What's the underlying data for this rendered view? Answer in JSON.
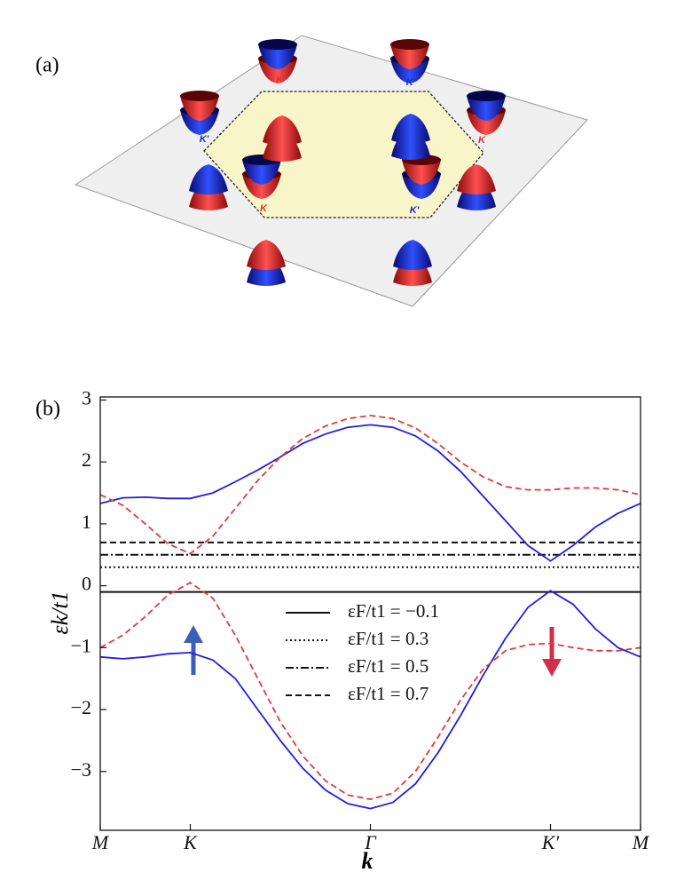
{
  "panel_a": {
    "label": "(a)",
    "valley_labels": [
      "K",
      "K'",
      "K",
      "K'",
      "K",
      "K'"
    ]
  },
  "chart_data": {
    "type": "line",
    "panel_label": "(b)",
    "x_label": "k",
    "y_label": "εk/t1",
    "xlim": [
      0,
      3
    ],
    "ylim": [
      -3.95,
      3.05
    ],
    "xticks": [
      {
        "value": 0,
        "label": "M"
      },
      {
        "value": 0.5,
        "label": "K"
      },
      {
        "value": 1.5,
        "label": "Γ"
      },
      {
        "value": 2.5,
        "label": "K′"
      },
      {
        "value": 3,
        "label": "M"
      }
    ],
    "yticks": [
      {
        "value": -3,
        "label": "−3"
      },
      {
        "value": -2,
        "label": "−2"
      },
      {
        "value": -1,
        "label": "−1"
      },
      0,
      1,
      2,
      3
    ],
    "x": [
      0,
      0.125,
      0.25,
      0.375,
      0.5,
      0.625,
      0.75,
      0.875,
      1.0,
      1.125,
      1.25,
      1.375,
      1.5,
      1.625,
      1.75,
      1.875,
      2.0,
      2.125,
      2.25,
      2.375,
      2.5,
      2.625,
      2.75,
      2.875,
      3.0
    ],
    "series": [
      {
        "color": "#1f1fe0",
        "linestyle": "solid",
        "values": [
          1.33,
          1.42,
          1.43,
          1.41,
          1.41,
          1.5,
          1.68,
          1.87,
          2.08,
          2.3,
          2.45,
          2.56,
          2.6,
          2.56,
          2.42,
          2.18,
          1.85,
          1.45,
          1.05,
          0.65,
          0.4,
          0.65,
          0.95,
          1.17,
          1.33
        ]
      },
      {
        "color": "#e03a3a",
        "linestyle": "dashed",
        "values": [
          1.47,
          1.3,
          1.0,
          0.68,
          0.52,
          0.8,
          1.25,
          1.7,
          2.08,
          2.38,
          2.58,
          2.7,
          2.75,
          2.7,
          2.55,
          2.3,
          2.0,
          1.76,
          1.6,
          1.55,
          1.55,
          1.58,
          1.58,
          1.55,
          1.47
        ]
      },
      {
        "color": "#1f1fe0",
        "linestyle": "solid",
        "values": [
          -1.15,
          -1.18,
          -1.15,
          -1.1,
          -1.08,
          -1.2,
          -1.5,
          -2.0,
          -2.5,
          -2.95,
          -3.3,
          -3.52,
          -3.6,
          -3.5,
          -3.2,
          -2.7,
          -2.1,
          -1.45,
          -0.85,
          -0.35,
          -0.08,
          -0.3,
          -0.7,
          -1.0,
          -1.15
        ]
      },
      {
        "color": "#e03a3a",
        "linestyle": "dashed",
        "values": [
          -1.0,
          -0.8,
          -0.5,
          -0.15,
          0.05,
          -0.2,
          -0.8,
          -1.5,
          -2.2,
          -2.75,
          -3.15,
          -3.38,
          -3.45,
          -3.35,
          -3.0,
          -2.45,
          -1.85,
          -1.35,
          -1.05,
          -0.95,
          -0.93,
          -1.0,
          -1.05,
          -1.05,
          -1.0
        ]
      }
    ],
    "hlines": [
      {
        "value": -0.1,
        "label": "εF/t1 = −0.1",
        "style": "solid"
      },
      {
        "value": 0.3,
        "label": "εF/t1 = 0.3",
        "style": "dotted"
      },
      {
        "value": 0.5,
        "label": "εF/t1 = 0.5",
        "style": "dashdot"
      },
      {
        "value": 0.7,
        "label": "εF/t1 = 0.7",
        "style": "dashed"
      }
    ]
  }
}
